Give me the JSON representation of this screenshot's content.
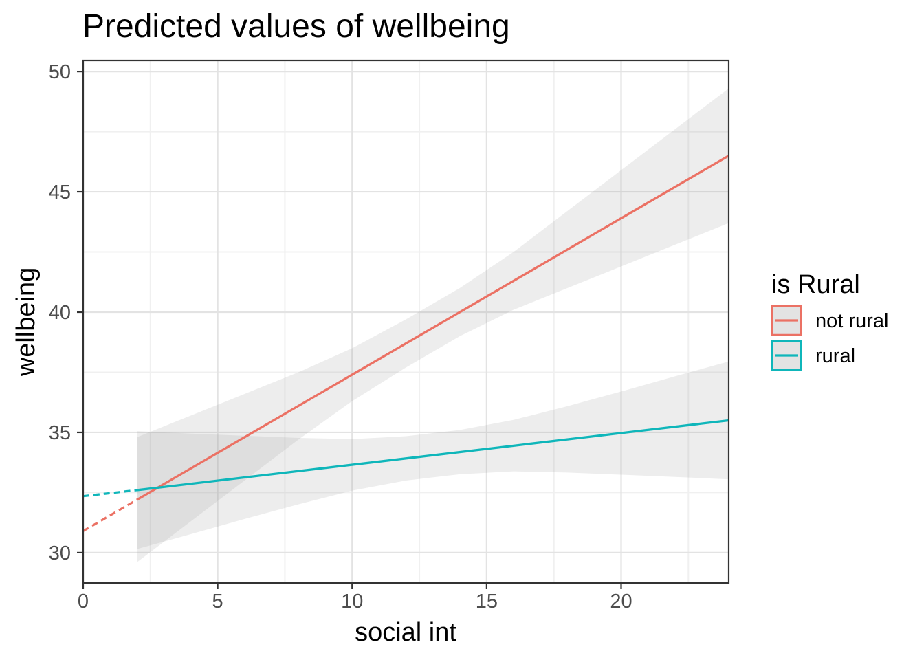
{
  "chart_data": {
    "type": "line",
    "title": "Predicted values of wellbeing",
    "xlabel": "social int",
    "ylabel": "wellbeing",
    "legend_title": "is Rural",
    "legend_position": "right",
    "grid": true,
    "xlim": [
      0,
      24
    ],
    "ylim": [
      28.74,
      50.46
    ],
    "x_major_ticks": [
      0,
      5,
      10,
      15,
      20
    ],
    "x_minor_gridlines": [
      2.5,
      7.5,
      12.5,
      17.5,
      22.5
    ],
    "y_major_ticks": [
      30,
      35,
      40,
      45,
      50
    ],
    "y_minor_gridlines": [
      32.5,
      37.5,
      42.5,
      47.5
    ],
    "panel_border_color": "#333333",
    "gridline_major_color": "#E3E3E3",
    "gridline_minor_color": "#F0F0F0",
    "tick_mark_color": "#333333",
    "tick_label_color": "#4D4D4D",
    "legend_key_fill": "#E3E3E3",
    "series": [
      {
        "name": "not rural",
        "color": "#EB7164",
        "solid": {
          "x": [
            2,
            24
          ],
          "y": [
            32.2,
            46.5
          ]
        },
        "dashed": {
          "x": [
            0,
            2
          ],
          "y": [
            30.9,
            32.2
          ]
        },
        "ci": {
          "x": [
            2,
            4,
            6,
            8,
            10,
            12,
            14,
            16,
            18,
            20,
            22,
            24
          ],
          "upper": [
            34.8,
            35.7,
            36.6,
            37.5,
            38.5,
            39.7,
            41.0,
            42.5,
            44.2,
            45.9,
            47.6,
            49.3
          ],
          "lower": [
            29.6,
            31.3,
            33.0,
            34.7,
            36.3,
            37.7,
            39.0,
            40.1,
            41.0,
            41.9,
            42.8,
            43.7
          ]
        },
        "ci_color": "#999999",
        "ci_opacity": 0.18
      },
      {
        "name": "rural",
        "color": "#0FB6BA",
        "solid": {
          "x": [
            2,
            24
          ],
          "y": [
            32.6,
            35.5
          ]
        },
        "dashed": {
          "x": [
            0,
            2
          ],
          "y": [
            32.35,
            32.6
          ]
        },
        "ci": {
          "x": [
            2,
            4,
            6,
            8,
            10,
            12,
            14,
            16,
            18,
            20,
            22,
            24
          ],
          "upper": [
            35.05,
            34.95,
            34.86,
            34.77,
            34.72,
            34.84,
            35.1,
            35.52,
            36.09,
            36.7,
            37.33,
            37.95
          ],
          "lower": [
            30.15,
            30.77,
            31.4,
            32.01,
            32.58,
            33.0,
            33.26,
            33.38,
            33.33,
            33.24,
            33.15,
            33.05
          ]
        },
        "ci_color": "#999999",
        "ci_opacity": 0.18
      }
    ]
  }
}
